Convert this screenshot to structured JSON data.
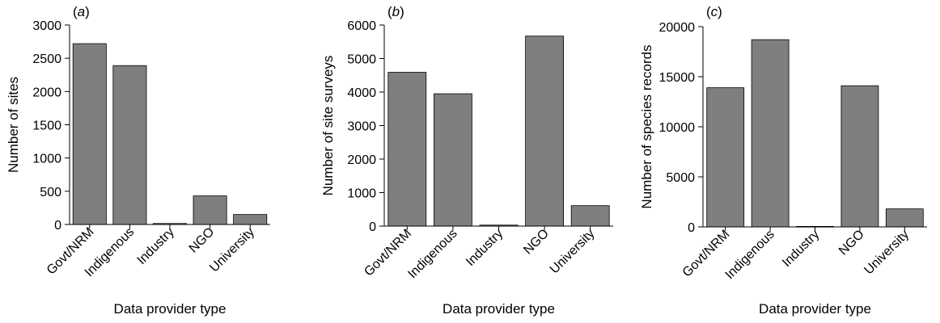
{
  "chart_data": [
    {
      "type": "bar",
      "panel_label": "(a)",
      "panel_label_italic": "a",
      "categories": [
        "Govt/NRM",
        "Indigenous",
        "Industry",
        "NGO",
        "University"
      ],
      "values": [
        2720,
        2390,
        15,
        430,
        150
      ],
      "xlabel": "Data provider type",
      "ylabel": "Number of sites",
      "ylim": [
        0,
        3000
      ],
      "yticks": [
        0,
        500,
        1000,
        1500,
        2000,
        2500,
        3000
      ],
      "grid": false,
      "bar_color": "#7f7f7f"
    },
    {
      "type": "bar",
      "panel_label": "(b)",
      "panel_label_italic": "b",
      "categories": [
        "Govt/NRM",
        "Indigenous",
        "Industry",
        "NGO",
        "University"
      ],
      "values": [
        4590,
        3950,
        30,
        5670,
        610
      ],
      "xlabel": "Data provider type",
      "ylabel": "Number of site surveys",
      "ylim": [
        0,
        6000
      ],
      "yticks": [
        0,
        1000,
        2000,
        3000,
        4000,
        5000,
        6000
      ],
      "grid": false,
      "bar_color": "#7f7f7f"
    },
    {
      "type": "bar",
      "panel_label": "(c)",
      "panel_label_italic": "c",
      "categories": [
        "Govt/NRM",
        "Indigenous",
        "Industry",
        "NGO",
        "University"
      ],
      "values": [
        13900,
        18700,
        50,
        14100,
        1800
      ],
      "xlabel": "Data provider type",
      "ylabel": "Number of species records",
      "ylim": [
        0,
        20000
      ],
      "yticks": [
        0,
        5000,
        10000,
        15000,
        20000
      ],
      "grid": false,
      "bar_color": "#7f7f7f"
    }
  ]
}
